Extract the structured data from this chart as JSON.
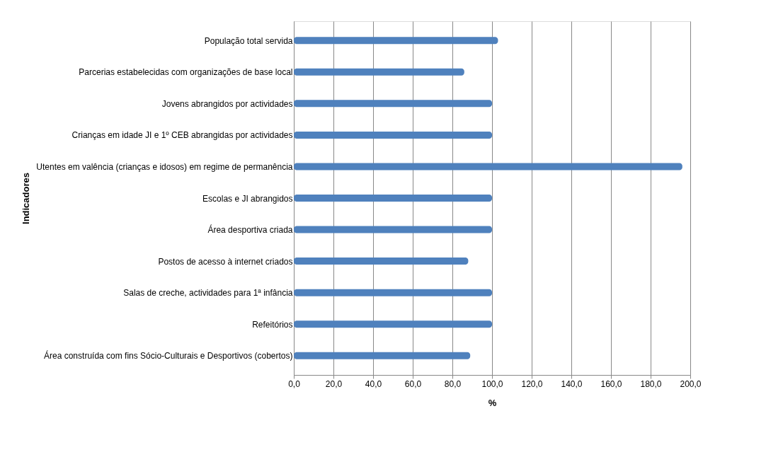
{
  "chart_data": {
    "type": "bar",
    "orientation": "horizontal",
    "xlabel": "%",
    "ylabel": "Indicadores",
    "categories": [
      "População total servida",
      "Parcerias estabelecidas com organizações de base local",
      "Jovens abrangidos por actividades",
      "Crianças em idade JI e 1º CEB abrangidas por actividades",
      "Utentes em valência (crianças e idosos) em regime de permanência",
      "Escolas e JI abrangidos",
      "Área desportiva criada",
      "Postos de acesso à internet criados",
      "Salas de creche, actividades para 1ª infância",
      "Refeitórios",
      "Área construída com fins Sócio-Culturais e Desportivos (cobertos)"
    ],
    "values": [
      103,
      86,
      100,
      100,
      196,
      100,
      100,
      88,
      100,
      100,
      89
    ],
    "color": "#4f81bd",
    "xlim": [
      0,
      200
    ],
    "xticks": [
      {
        "value": 0,
        "label": "0,0"
      },
      {
        "value": 20,
        "label": "20,0"
      },
      {
        "value": 40,
        "label": "40,0"
      },
      {
        "value": 60,
        "label": "60,0"
      },
      {
        "value": 80,
        "label": "80,0"
      },
      {
        "value": 100,
        "label": "100,0"
      },
      {
        "value": 120,
        "label": "120,0"
      },
      {
        "value": 140,
        "label": "140,0"
      },
      {
        "value": 160,
        "label": "160,0"
      },
      {
        "value": 180,
        "label": "180,0"
      },
      {
        "value": 200,
        "label": "200,0"
      }
    ],
    "grid": "x"
  }
}
